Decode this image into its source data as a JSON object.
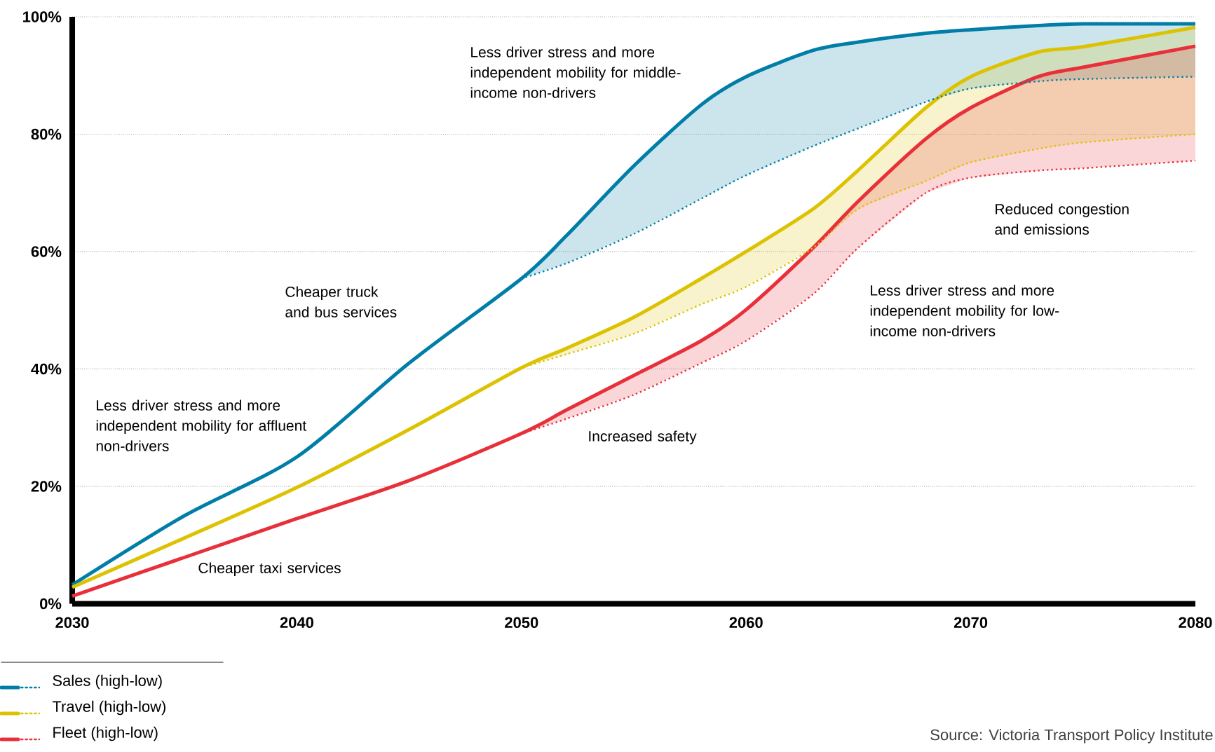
{
  "chart_data": {
    "type": "line",
    "x": [
      2030,
      2035,
      2040,
      2045,
      2050,
      2052,
      2055,
      2058,
      2060,
      2063,
      2065,
      2068,
      2070,
      2073,
      2075,
      2080
    ],
    "series": [
      {
        "name": "Sales (high-low)",
        "color": "#007ea7",
        "values": [
          3.2,
          15,
          25,
          41,
          55.4,
          62.7,
          74.6,
          85,
          89.8,
          94.3,
          95.7,
          97.2,
          97.8,
          98.5,
          98.8,
          98.8
        ]
      },
      {
        "color": "#007ea7",
        "line_style": "dotted",
        "x": [
          2050,
          2052,
          2055,
          2058,
          2060,
          2063,
          2065,
          2068,
          2070,
          2073,
          2075,
          2080
        ],
        "values": [
          55.4,
          58,
          63,
          69,
          73,
          78,
          81,
          85.5,
          87.8,
          89,
          89.4,
          89.8
        ],
        "lower": [
          55.4,
          58,
          63,
          69,
          73,
          78,
          81,
          85.5,
          87.8,
          89,
          89.4,
          89.8
        ],
        "upper": [
          55.4,
          62.7,
          74.6,
          85,
          89.8,
          94.3,
          95.7,
          97.2,
          97.8,
          98.5,
          98.8,
          98.8
        ]
      },
      {
        "name": "Travel (high-low)",
        "color": "#dcc200",
        "values": [
          2.8,
          11.2,
          19.8,
          29.7,
          40.2,
          43.5,
          48.8,
          55.4,
          60,
          67.3,
          73.9,
          84.5,
          89.8,
          94,
          94.9,
          98.2
        ]
      },
      {
        "color": "#dcc200",
        "line_style": "dotted",
        "x": [
          2050,
          2052,
          2055,
          2058,
          2060,
          2063,
          2065,
          2068,
          2070,
          2073,
          2075,
          2080
        ],
        "values": [
          40.2,
          42.5,
          46,
          51,
          54,
          60.7,
          67.3,
          72,
          75.2,
          77.5,
          78.6,
          80
        ],
        "lower": [
          40.2,
          42.5,
          46,
          51,
          54,
          60.7,
          67.3,
          72,
          75.2,
          77.5,
          78.6,
          80
        ],
        "upper": [
          40.2,
          43.5,
          48.8,
          55.4,
          60,
          67.3,
          73.9,
          84.5,
          89.8,
          94,
          94.9,
          98.2
        ]
      },
      {
        "name": "Fleet (high-low)",
        "color": "#e8303a",
        "values": [
          1.3,
          7.9,
          14.5,
          21,
          29,
          33,
          38.9,
          44.8,
          50.1,
          60.7,
          68.6,
          79.2,
          84.5,
          89.8,
          91.4,
          95
        ]
      },
      {
        "color": "#e8303a",
        "line_style": "dotted",
        "x": [
          2050,
          2052,
          2055,
          2058,
          2060,
          2063,
          2065,
          2068,
          2070,
          2073,
          2075,
          2080
        ],
        "values": [
          29,
          31.5,
          35.6,
          41,
          44.8,
          52.8,
          60.7,
          70,
          72.6,
          73.8,
          74.2,
          75.5
        ],
        "lower": [
          29,
          31.5,
          35.6,
          41,
          44.8,
          52.8,
          60.7,
          70,
          72.6,
          73.8,
          74.2,
          75.5
        ],
        "upper": [
          29,
          33,
          38.9,
          44.8,
          50.1,
          60.7,
          68.6,
          79.2,
          84.5,
          89.8,
          91.4,
          95
        ]
      }
    ],
    "xlim": [
      2030,
      2080
    ],
    "ylim": [
      0,
      100
    ],
    "xticks": [
      2030,
      2040,
      2050,
      2060,
      2070,
      2080
    ],
    "yticks": [
      {
        "value": 0,
        "label": "0%"
      },
      {
        "value": 20,
        "label": "20%"
      },
      {
        "value": 40,
        "label": "40%"
      },
      {
        "value": 60,
        "label": "60%"
      },
      {
        "value": 80,
        "label": "80%"
      },
      {
        "value": 100,
        "label": "100%"
      }
    ],
    "grid": "y",
    "legend": "bottom left",
    "line_style": "solid",
    "annotations": [
      "Less driver stress and more independent mobility for middle-income non-drivers",
      "Cheaper truck and bus services",
      "Less driver stress and more independent mobility for affluent non-drivers",
      "Cheaper taxi services",
      "Increased safety",
      "Reduced congestion and emissions",
      "Less driver stress and more independent mobility for low-income non-drivers",
      "Source: Victoria Transport Policy Institute"
    ]
  }
}
